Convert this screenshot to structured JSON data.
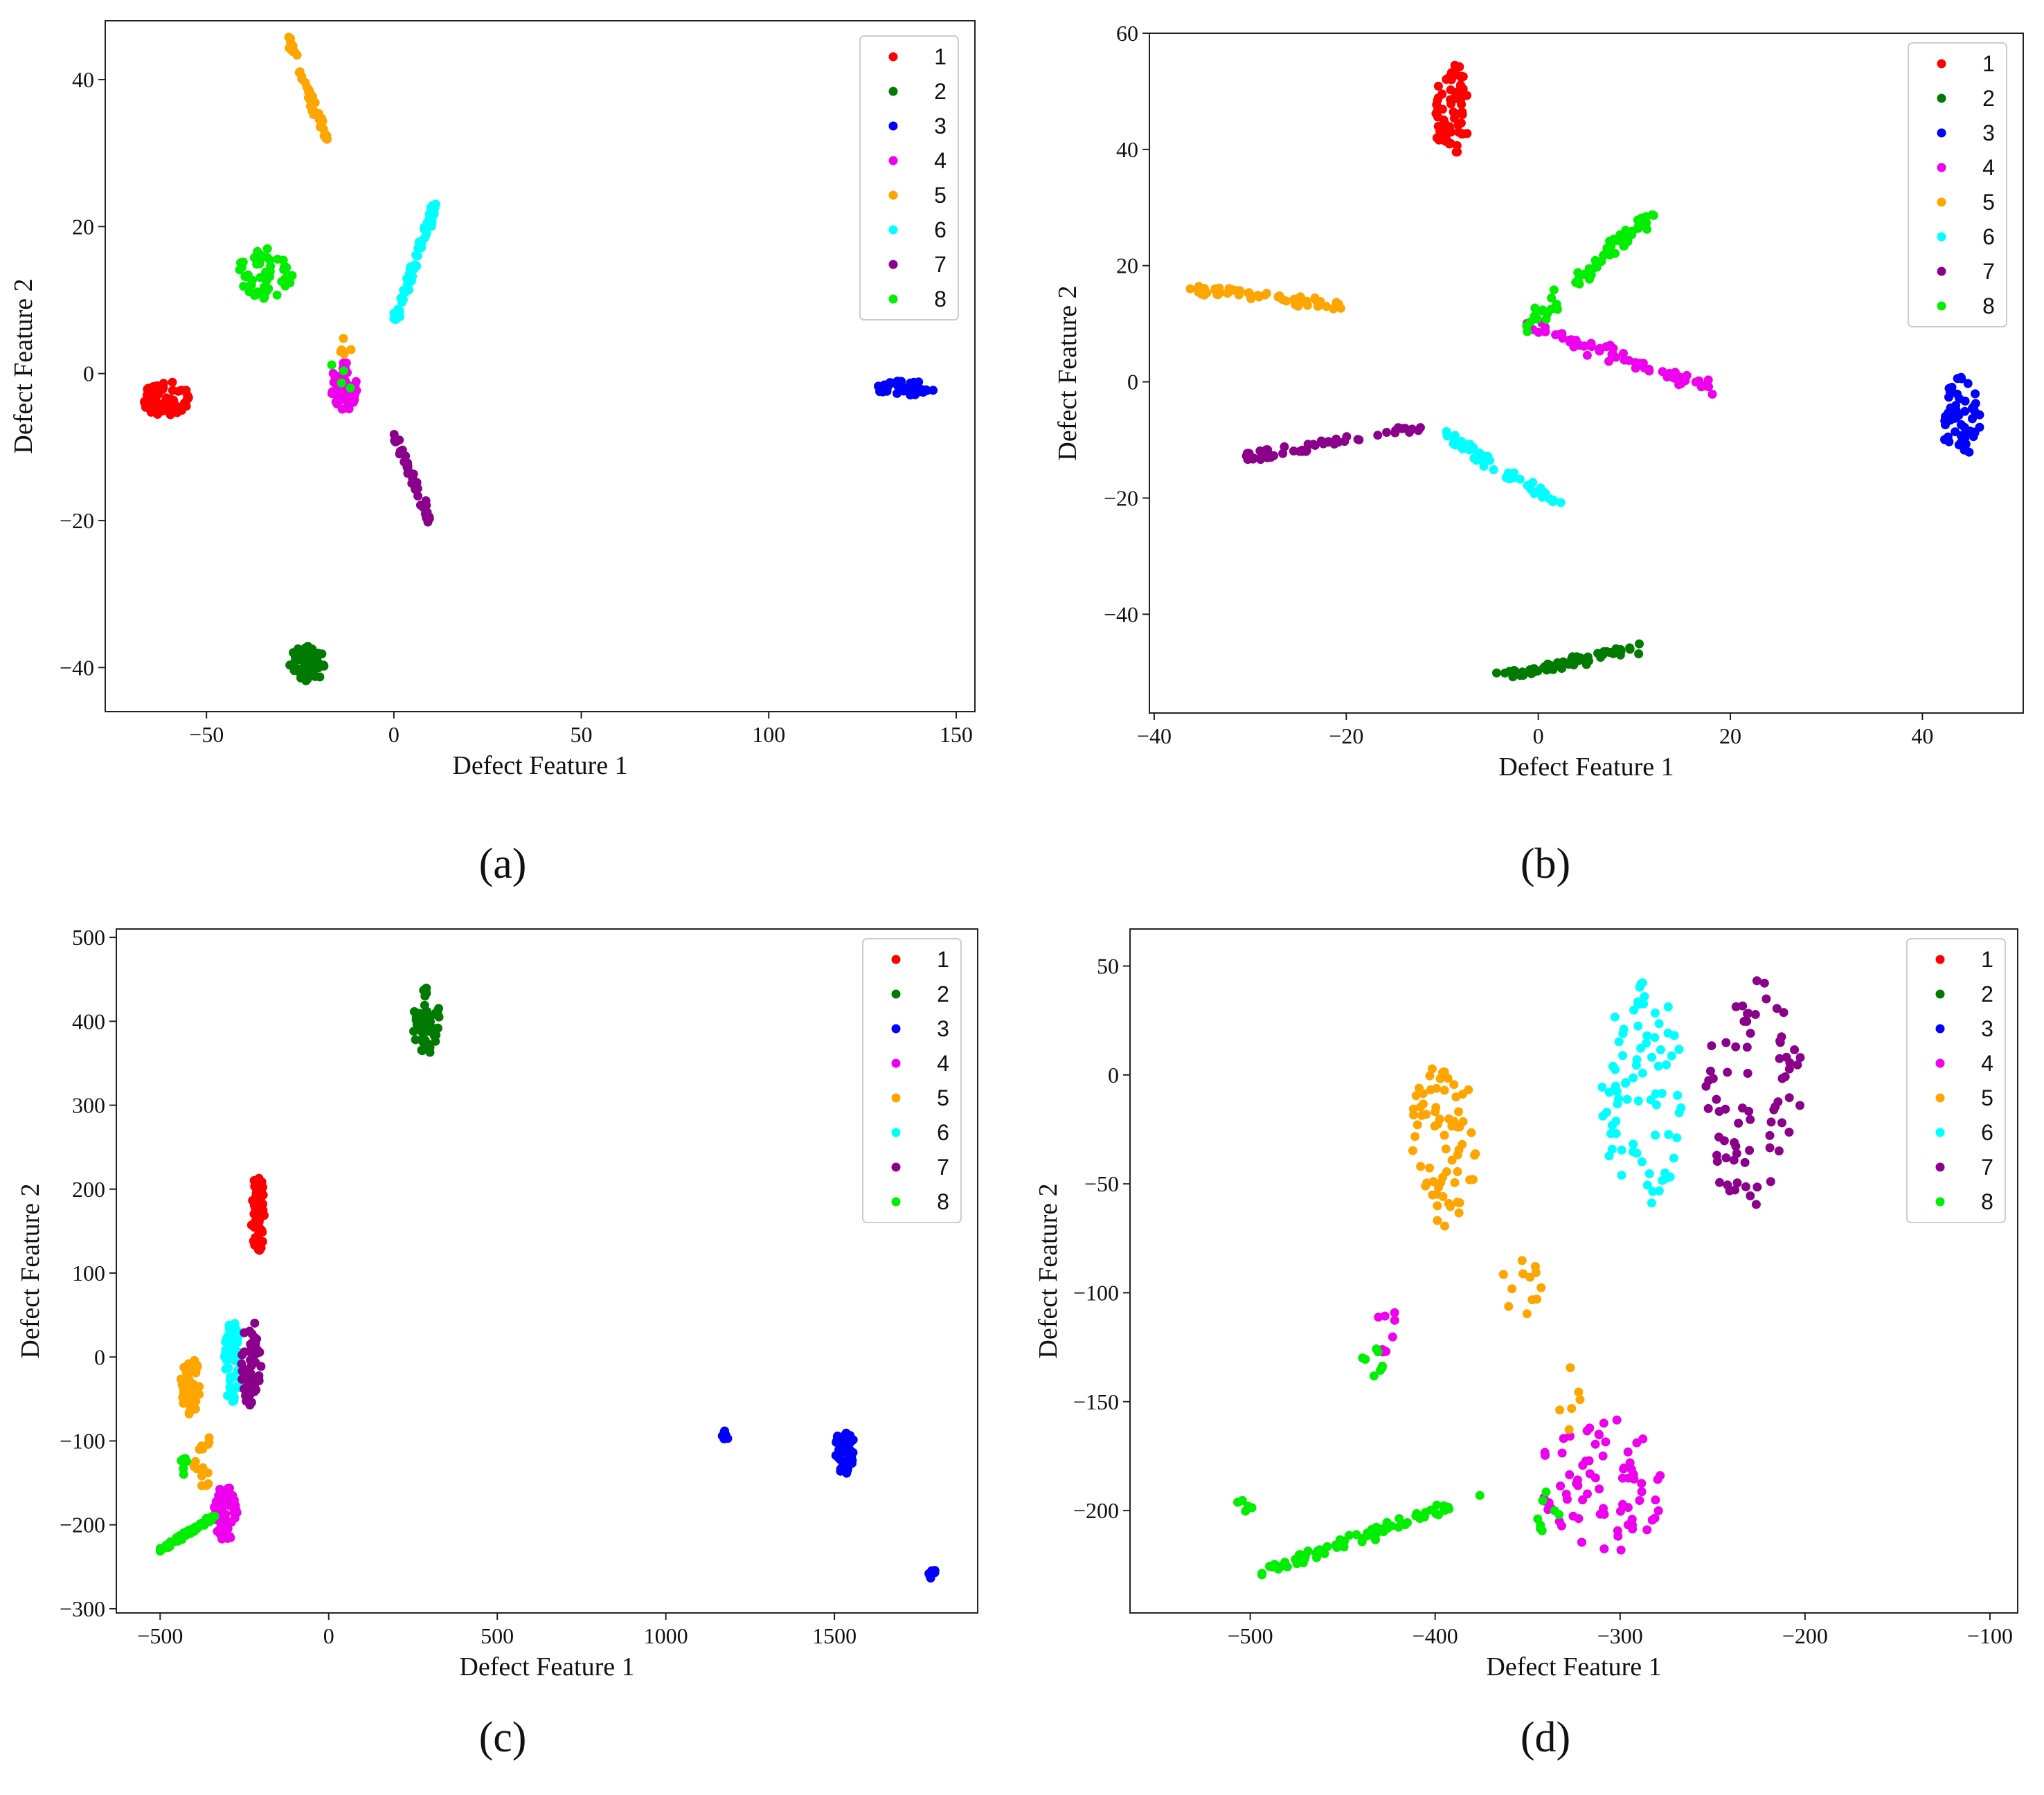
{
  "figure": {
    "legend_position": "upper-right",
    "colors": {
      "1": "#ff0000",
      "2": "#007a00",
      "3": "#0000ff",
      "4": "#ee00ee",
      "5": "#ffa500",
      "6": "#00ffff",
      "7": "#8b008b",
      "8": "#00ee00"
    }
  },
  "chart_data": [
    {
      "id": "a",
      "caption": "(a)",
      "type": "scatter",
      "xlabel": "Defect Feature 1",
      "ylabel": "Defect Feature 2",
      "xlim": [
        -77,
        155
      ],
      "ylim": [
        -46,
        48
      ],
      "xticks": [
        -50,
        0,
        50,
        100,
        150
      ],
      "yticks": [
        -40,
        -20,
        0,
        20,
        40
      ],
      "xtick_labels": [
        "−50",
        "0",
        "50",
        "100",
        "150"
      ],
      "ytick_labels": [
        "−40",
        "−20",
        "0",
        "20",
        "40"
      ],
      "legend": [
        "1",
        "2",
        "3",
        "4",
        "5",
        "6",
        "7",
        "8"
      ],
      "clusters": [
        {
          "class": "1",
          "x": [
            -67,
            -54
          ],
          "y": [
            -6,
            -1
          ],
          "n": 60
        },
        {
          "class": "2",
          "x": [
            -28,
            -18
          ],
          "y": [
            -42,
            -37
          ],
          "n": 55
        },
        {
          "class": "3",
          "x": [
            128,
            145
          ],
          "y": [
            -3,
            -1
          ],
          "n": 55
        },
        {
          "class": "4",
          "x": [
            -17,
            -9
          ],
          "y": [
            -5,
            2
          ],
          "n": 55
        },
        {
          "class": "5",
          "x": [
            -28,
            -18
          ],
          "y": [
            45,
            32
          ],
          "n": 50,
          "line": true
        },
        {
          "class": "5",
          "x": [
            -15,
            -11
          ],
          "y": [
            -2,
            5
          ],
          "n": 6
        },
        {
          "class": "6",
          "x": [
            0,
            11
          ],
          "y": [
            7,
            23
          ],
          "n": 70,
          "line": true
        },
        {
          "class": "7",
          "x": [
            0,
            10
          ],
          "y": [
            -8,
            -20
          ],
          "n": 45,
          "line": true
        },
        {
          "class": "8",
          "x": [
            -42,
            -27
          ],
          "y": [
            10,
            17
          ],
          "n": 55
        },
        {
          "class": "8",
          "x": [
            -18,
            -10
          ],
          "y": [
            -3,
            2
          ],
          "n": 4
        }
      ]
    },
    {
      "id": "b",
      "caption": "(b)",
      "type": "scatter",
      "xlabel": "Defect Feature 1",
      "ylabel": "Defect Feature 2",
      "xlim": [
        -40.5,
        50.5
      ],
      "ylim": [
        -57,
        60
      ],
      "xticks": [
        -40,
        -20,
        0,
        20,
        40
      ],
      "yticks": [
        -40,
        -20,
        0,
        20,
        40,
        60
      ],
      "xtick_labels": [
        "−40",
        "−20",
        "0",
        "20",
        "40"
      ],
      "ytick_labels": [
        "−40",
        "−20",
        "0",
        "20",
        "40",
        "60"
      ],
      "legend": [
        "1",
        "2",
        "3",
        "4",
        "5",
        "6",
        "7",
        "8"
      ],
      "clusters": [
        {
          "class": "1",
          "x": [
            -11,
            -7
          ],
          "y": [
            39,
            55
          ],
          "n": 70
        },
        {
          "class": "2",
          "x": [
            -4,
            10
          ],
          "y": [
            -51,
            -46
          ],
          "n": 60,
          "line": true
        },
        {
          "class": "3",
          "x": [
            42,
            46
          ],
          "y": [
            -14,
            1
          ],
          "n": 60
        },
        {
          "class": "4",
          "x": [
            -1,
            19
          ],
          "y": [
            10,
            -2
          ],
          "n": 65,
          "line": true
        },
        {
          "class": "5",
          "x": [
            -36,
            -20
          ],
          "y": [
            16,
            13
          ],
          "n": 60,
          "line": true
        },
        {
          "class": "6",
          "x": [
            -10,
            2
          ],
          "y": [
            -9,
            -21
          ],
          "n": 55,
          "line": true
        },
        {
          "class": "7",
          "x": [
            -31,
            -12
          ],
          "y": [
            -13,
            -8
          ],
          "n": 55,
          "line": true
        },
        {
          "class": "8",
          "x": [
            -1,
            12
          ],
          "y": [
            10,
            29
          ],
          "n": 65,
          "line": true
        }
      ]
    },
    {
      "id": "c",
      "caption": "(c)",
      "type": "scatter",
      "xlabel": "Defect Feature 1",
      "ylabel": "Defect Feature 2",
      "xlim": [
        -630,
        1925
      ],
      "ylim": [
        -305,
        510
      ],
      "xticks": [
        -500,
        0,
        500,
        1000,
        1500
      ],
      "yticks": [
        -300,
        -200,
        -100,
        0,
        100,
        200,
        300,
        400,
        500
      ],
      "xtick_labels": [
        "−500",
        "0",
        "500",
        "1000",
        "1500"
      ],
      "ytick_labels": [
        "−300",
        "−200",
        "−100",
        "0",
        "100",
        "200",
        "300",
        "400",
        "500"
      ],
      "legend": [
        "1",
        "2",
        "3",
        "4",
        "5",
        "6",
        "7",
        "8"
      ],
      "clusters": [
        {
          "class": "1",
          "x": [
            -230,
            -190
          ],
          "y": [
            120,
            220
          ],
          "n": 60
        },
        {
          "class": "2",
          "x": [
            250,
            330
          ],
          "y": [
            360,
            440
          ],
          "n": 60
        },
        {
          "class": "3",
          "x": [
            1500,
            1560
          ],
          "y": [
            -140,
            -85
          ],
          "n": 55
        },
        {
          "class": "3",
          "x": [
            1165,
            1185
          ],
          "y": [
            -100,
            -88
          ],
          "n": 8
        },
        {
          "class": "3",
          "x": [
            1780,
            1800
          ],
          "y": [
            -265,
            -250
          ],
          "n": 8
        },
        {
          "class": "4",
          "x": [
            -340,
            -270
          ],
          "y": [
            -220,
            -150
          ],
          "n": 55
        },
        {
          "class": "5",
          "x": [
            -440,
            -380
          ],
          "y": [
            -70,
            0
          ],
          "n": 45
        },
        {
          "class": "5",
          "x": [
            -400,
            -340
          ],
          "y": [
            -160,
            -90
          ],
          "n": 15
        },
        {
          "class": "6",
          "x": [
            -310,
            -260
          ],
          "y": [
            -60,
            45
          ],
          "n": 60
        },
        {
          "class": "7",
          "x": [
            -260,
            -200
          ],
          "y": [
            -60,
            45
          ],
          "n": 55
        },
        {
          "class": "8",
          "x": [
            -500,
            -340
          ],
          "y": [
            -230,
            -190
          ],
          "n": 70,
          "line": true
        },
        {
          "class": "8",
          "x": [
            -440,
            -420
          ],
          "y": [
            -140,
            -115
          ],
          "n": 6
        }
      ]
    },
    {
      "id": "d",
      "caption": "(d)",
      "type": "scatter",
      "xlabel": "Defect Feature 1",
      "ylabel": "Defect Feature 2",
      "xlim": [
        -565,
        -85
      ],
      "ylim": [
        -247,
        67
      ],
      "xticks": [
        -500,
        -400,
        -300,
        -200,
        -100
      ],
      "yticks": [
        -200,
        -150,
        -100,
        -50,
        0,
        50
      ],
      "xtick_labels": [
        "−500",
        "−400",
        "−300",
        "−200",
        "−100"
      ],
      "ytick_labels": [
        "−200",
        "−150",
        "−100",
        "−50",
        "0",
        "50"
      ],
      "legend": [
        "1",
        "2",
        "3",
        "4",
        "5",
        "6",
        "7",
        "8"
      ],
      "clusters": [
        {
          "class": "4",
          "x": [
            -345,
            -275
          ],
          "y": [
            -220,
            -155
          ],
          "n": 75
        },
        {
          "class": "4",
          "x": [
            -435,
            -420
          ],
          "y": [
            -130,
            -105
          ],
          "n": 8
        },
        {
          "class": "5",
          "x": [
            -415,
            -375
          ],
          "y": [
            -70,
            5
          ],
          "n": 70
        },
        {
          "class": "5",
          "x": [
            -365,
            -340
          ],
          "y": [
            -110,
            -85
          ],
          "n": 12
        },
        {
          "class": "5",
          "x": [
            -335,
            -320
          ],
          "y": [
            -165,
            -130
          ],
          "n": 6
        },
        {
          "class": "6",
          "x": [
            -310,
            -265
          ],
          "y": [
            -60,
            45
          ],
          "n": 80
        },
        {
          "class": "7",
          "x": [
            -255,
            -200
          ],
          "y": [
            -65,
            45
          ],
          "n": 75
        },
        {
          "class": "8",
          "x": [
            -495,
            -380
          ],
          "y": [
            -228,
            -195
          ],
          "n": 70,
          "line": true
        },
        {
          "class": "8",
          "x": [
            -345,
            -330
          ],
          "y": [
            -215,
            -190
          ],
          "n": 8
        },
        {
          "class": "8",
          "x": [
            -440,
            -425
          ],
          "y": [
            -140,
            -125
          ],
          "n": 8
        },
        {
          "class": "8",
          "x": [
            -510,
            -495
          ],
          "y": [
            -205,
            -190
          ],
          "n": 5
        }
      ]
    }
  ]
}
